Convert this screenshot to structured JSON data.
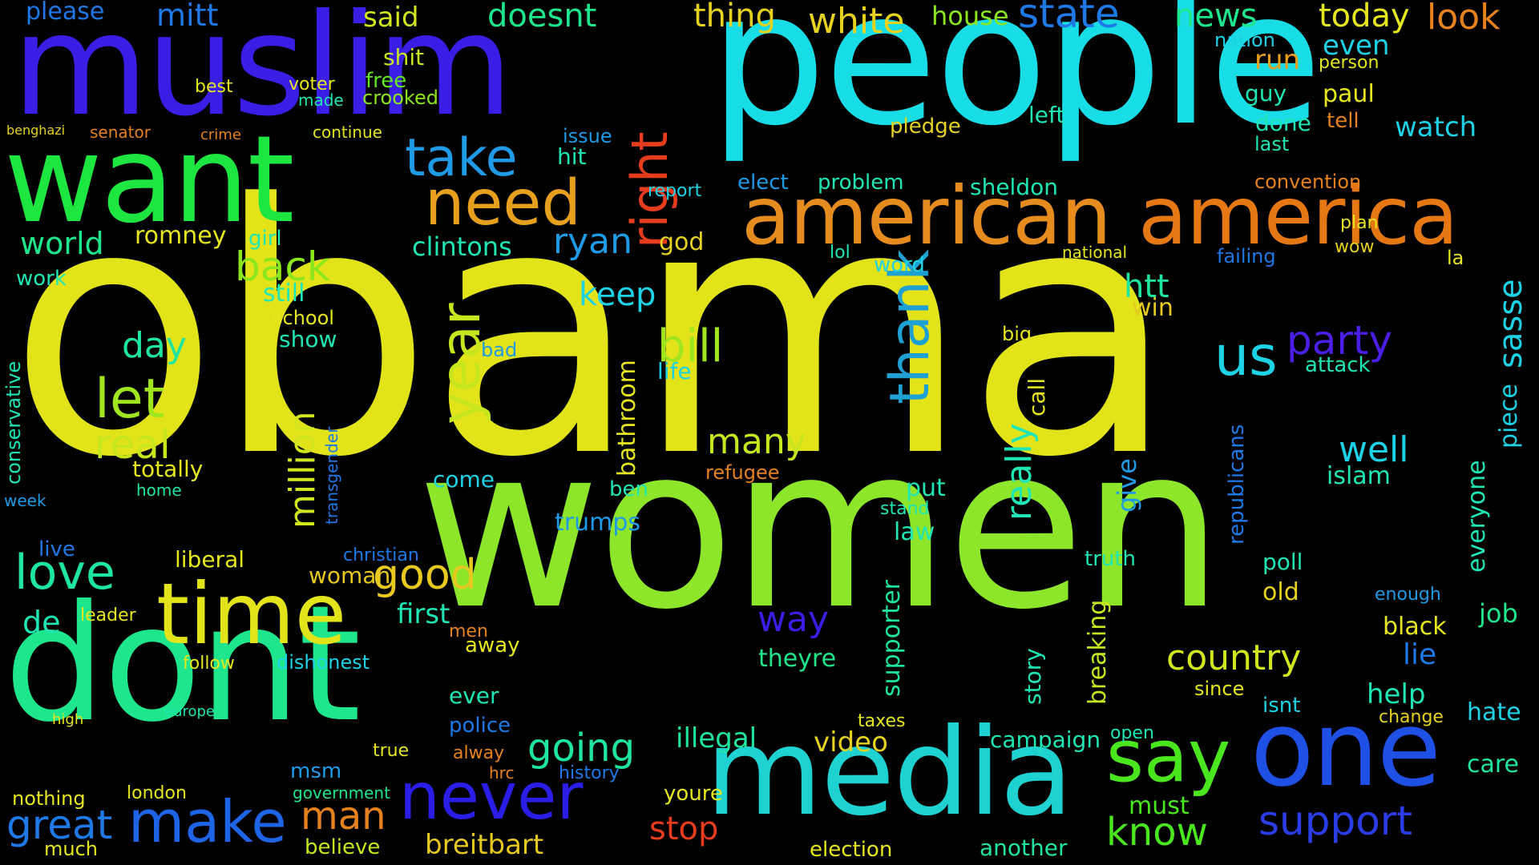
{
  "background": "#000000",
  "words": [
    {
      "text": "obama",
      "color": "#e3e31a"
    },
    {
      "text": "women",
      "color": "#8ee62a"
    },
    {
      "text": "people",
      "color": "#18dce6"
    },
    {
      "text": "muslim",
      "color": "#3a1ee6"
    },
    {
      "text": "want",
      "color": "#1ee640"
    },
    {
      "text": "dont",
      "color": "#1ee68c"
    },
    {
      "text": "media",
      "color": "#1ed2d2"
    },
    {
      "text": "one",
      "color": "#1e50e6"
    },
    {
      "text": "american",
      "color": "#e68c1e"
    },
    {
      "text": "america",
      "color": "#e67814"
    },
    {
      "text": "say",
      "color": "#4ae61e"
    },
    {
      "text": "time",
      "color": "#e3e31a"
    },
    {
      "text": "make",
      "color": "#1e64e6"
    },
    {
      "text": "never",
      "color": "#2a1ee6"
    },
    {
      "text": "need",
      "color": "#e6a01e"
    },
    {
      "text": "right",
      "color": "#e63c1e"
    },
    {
      "text": "take",
      "color": "#1e9ae6"
    },
    {
      "text": "thank",
      "color": "#1ea0d2"
    },
    {
      "text": "year",
      "color": "#c8e61e"
    },
    {
      "text": "let",
      "color": "#a0e61e"
    },
    {
      "text": "us",
      "color": "#1ed2e6"
    },
    {
      "text": "support",
      "color": "#2a3ce6"
    },
    {
      "text": "party",
      "color": "#4a1ee6"
    },
    {
      "text": "country",
      "color": "#d2e61e"
    },
    {
      "text": "know",
      "color": "#4ae61e"
    },
    {
      "text": "love",
      "color": "#1ee6a0"
    },
    {
      "text": "back",
      "color": "#8ce61e"
    },
    {
      "text": "state",
      "color": "#1e78e6"
    },
    {
      "text": "news",
      "color": "#1ee68c"
    },
    {
      "text": "today",
      "color": "#e6e61e"
    },
    {
      "text": "look",
      "color": "#e6821e"
    },
    {
      "text": "white",
      "color": "#e6d21e"
    },
    {
      "text": "thing",
      "color": "#e6d21e"
    },
    {
      "text": "said",
      "color": "#d2e61e"
    },
    {
      "text": "mitt",
      "color": "#1e78e6"
    },
    {
      "text": "doesnt",
      "color": "#1ee68c"
    },
    {
      "text": "house",
      "color": "#8ce61e"
    },
    {
      "text": "please",
      "color": "#1e78e6"
    },
    {
      "text": "shit",
      "color": "#c8e61e"
    },
    {
      "text": "free",
      "color": "#64e61e"
    },
    {
      "text": "crooked",
      "color": "#8ce61e"
    },
    {
      "text": "world",
      "color": "#1ee68c"
    },
    {
      "text": "romney",
      "color": "#e6e61e"
    },
    {
      "text": "day",
      "color": "#1ee6a0"
    },
    {
      "text": "real",
      "color": "#c8e61e"
    },
    {
      "text": "totally",
      "color": "#e6e61e"
    },
    {
      "text": "home",
      "color": "#1ee6a0"
    },
    {
      "text": "good",
      "color": "#e6c81e"
    },
    {
      "text": "first",
      "color": "#1ee6b4"
    },
    {
      "text": "woman",
      "color": "#e6c81e"
    },
    {
      "text": "great",
      "color": "#1e78e6"
    },
    {
      "text": "man",
      "color": "#e6821e"
    },
    {
      "text": "stop",
      "color": "#e63c1e"
    },
    {
      "text": "breitbart",
      "color": "#e6c81e"
    },
    {
      "text": "believe",
      "color": "#c8e61e"
    },
    {
      "text": "government",
      "color": "#1ee68c"
    },
    {
      "text": "going",
      "color": "#1ee6a0"
    },
    {
      "text": "video",
      "color": "#e6d21e"
    },
    {
      "text": "illegal",
      "color": "#1ee6a0"
    },
    {
      "text": "many",
      "color": "#c8e61e"
    },
    {
      "text": "bill",
      "color": "#a0e61e"
    },
    {
      "text": "keep",
      "color": "#1ed2e6"
    },
    {
      "text": "god",
      "color": "#e6d21e"
    },
    {
      "text": "ryan",
      "color": "#1e9ae6"
    },
    {
      "text": "clintons",
      "color": "#1ee6b4"
    },
    {
      "text": "million",
      "color": "#d2e61e"
    },
    {
      "text": "really",
      "color": "#1ee6b4"
    },
    {
      "text": "well",
      "color": "#1ed2e6"
    },
    {
      "text": "islam",
      "color": "#1ee6b4"
    },
    {
      "text": "way",
      "color": "#3a1ee6"
    },
    {
      "text": "theyre",
      "color": "#1ee68c"
    },
    {
      "text": "supporter",
      "color": "#1ee6a0"
    },
    {
      "text": "job",
      "color": "#1ee68c"
    },
    {
      "text": "lie",
      "color": "#1e78e6"
    },
    {
      "text": "help",
      "color": "#1ee6b4"
    },
    {
      "text": "old",
      "color": "#e6d21e"
    },
    {
      "text": "sasse",
      "color": "#1ed2e6"
    },
    {
      "text": "watch",
      "color": "#1ed2e6"
    },
    {
      "text": "piece",
      "color": "#1ed2e6"
    },
    {
      "text": "everyone",
      "color": "#1ee6b4"
    },
    {
      "text": "hate",
      "color": "#1ed2e6"
    },
    {
      "text": "care",
      "color": "#1ee6a0"
    },
    {
      "text": "campaign",
      "color": "#1ee6b4"
    },
    {
      "text": "election",
      "color": "#e6e61e"
    },
    {
      "text": "another",
      "color": "#1ee6a0"
    },
    {
      "text": "must",
      "color": "#4ae61e"
    },
    {
      "text": "taxes",
      "color": "#e6e61e"
    },
    {
      "text": "law",
      "color": "#1ee6b4"
    },
    {
      "text": "put",
      "color": "#1ee6b4"
    },
    {
      "text": "stand",
      "color": "#1ee6b4"
    },
    {
      "text": "pledge",
      "color": "#e6d21e"
    },
    {
      "text": "left",
      "color": "#1ee6b4"
    },
    {
      "text": "guy",
      "color": "#1ee6b4"
    },
    {
      "text": "done",
      "color": "#1ee6b4"
    },
    {
      "text": "paul",
      "color": "#e6e61e"
    },
    {
      "text": "run",
      "color": "#e6a01e"
    },
    {
      "text": "even",
      "color": "#1ed2e6"
    },
    {
      "text": "nation",
      "color": "#1ed2e6"
    },
    {
      "text": "person",
      "color": "#e6e61e"
    },
    {
      "text": "tell",
      "color": "#e6821e"
    },
    {
      "text": "last",
      "color": "#1ee6b4"
    },
    {
      "text": "convention",
      "color": "#e6821e"
    },
    {
      "text": "sheldon",
      "color": "#1ee6b4"
    },
    {
      "text": "problem",
      "color": "#1ee6b4"
    },
    {
      "text": "elect",
      "color": "#1e9ae6"
    },
    {
      "text": "report",
      "color": "#1ed2e6"
    },
    {
      "text": "hit",
      "color": "#1ee6b4"
    },
    {
      "text": "issue",
      "color": "#1e9ae6"
    },
    {
      "text": "word",
      "color": "#1ed2e6"
    },
    {
      "text": "lol",
      "color": "#1ee6b4"
    },
    {
      "text": "national",
      "color": "#e6e61e"
    },
    {
      "text": "plan",
      "color": "#e6e61e"
    },
    {
      "text": "wow",
      "color": "#e6d21e"
    },
    {
      "text": "la",
      "color": "#e6e61e"
    },
    {
      "text": "failing",
      "color": "#1e78e6"
    },
    {
      "text": "htt",
      "color": "#1ee6a0"
    },
    {
      "text": "win",
      "color": "#e6c81e"
    },
    {
      "text": "attack",
      "color": "#1ee6b4"
    },
    {
      "text": "call",
      "color": "#e6e61e"
    },
    {
      "text": "big",
      "color": "#e6e61e"
    },
    {
      "text": "story",
      "color": "#1ee6b4"
    },
    {
      "text": "breaking",
      "color": "#c8e61e"
    },
    {
      "text": "give",
      "color": "#1e9ae6"
    },
    {
      "text": "republicans",
      "color": "#1e78e6"
    },
    {
      "text": "truth",
      "color": "#1ee6b4"
    },
    {
      "text": "poll",
      "color": "#1ee6b4"
    },
    {
      "text": "black",
      "color": "#e6e61e"
    },
    {
      "text": "enough",
      "color": "#1e9ae6"
    },
    {
      "text": "since",
      "color": "#e6e61e"
    },
    {
      "text": "isnt",
      "color": "#1ed2e6"
    },
    {
      "text": "change",
      "color": "#e6d21e"
    },
    {
      "text": "open",
      "color": "#1ee6b4"
    },
    {
      "text": "history",
      "color": "#1e78e6"
    },
    {
      "text": "police",
      "color": "#1e78e6"
    },
    {
      "text": "ever",
      "color": "#1ee6b4"
    },
    {
      "text": "youre",
      "color": "#e6e61e"
    },
    {
      "text": "away",
      "color": "#e6e61e"
    },
    {
      "text": "trumps",
      "color": "#1e9ae6"
    },
    {
      "text": "ben",
      "color": "#1ee6b4"
    },
    {
      "text": "come",
      "color": "#1ed2e6"
    },
    {
      "text": "bad",
      "color": "#1e9ae6"
    },
    {
      "text": "life",
      "color": "#1ed2e6"
    },
    {
      "text": "bathroom",
      "color": "#e6e61e"
    },
    {
      "text": "refugee",
      "color": "#e6821e"
    },
    {
      "text": "liberal",
      "color": "#e6e61e"
    },
    {
      "text": "christian",
      "color": "#1e78e6"
    },
    {
      "text": "transgender",
      "color": "#1e78e6"
    },
    {
      "text": "show",
      "color": "#1ee6b4"
    },
    {
      "text": "school",
      "color": "#e6e61e"
    },
    {
      "text": "still",
      "color": "#1ee6b4"
    },
    {
      "text": "girl",
      "color": "#1ee6b4"
    },
    {
      "text": "work",
      "color": "#1ee6b4"
    },
    {
      "text": "conservative",
      "color": "#1ee6b4"
    },
    {
      "text": "week",
      "color": "#1e9ae6"
    },
    {
      "text": "live",
      "color": "#1e78e6"
    },
    {
      "text": "de",
      "color": "#1ee6b4"
    },
    {
      "text": "leader",
      "color": "#e6e61e"
    },
    {
      "text": "follow",
      "color": "#e6e61e"
    },
    {
      "text": "dishonest",
      "color": "#1ed2e6"
    },
    {
      "text": "msm",
      "color": "#1e9ae6"
    },
    {
      "text": "true",
      "color": "#e6e61e"
    },
    {
      "text": "much",
      "color": "#e6e61e"
    },
    {
      "text": "nothing",
      "color": "#e6e61e"
    },
    {
      "text": "london",
      "color": "#e6e61e"
    },
    {
      "text": "europe",
      "color": "#1ee6b4"
    },
    {
      "text": "high",
      "color": "#e6e61e"
    },
    {
      "text": "men",
      "color": "#e6821e"
    },
    {
      "text": "alway",
      "color": "#e6821e"
    },
    {
      "text": "hrc",
      "color": "#e6821e"
    },
    {
      "text": "voter",
      "color": "#e6e61e"
    },
    {
      "text": "made",
      "color": "#1ee6b4"
    },
    {
      "text": "best",
      "color": "#e6e61e"
    },
    {
      "text": "continue",
      "color": "#e6e61e"
    },
    {
      "text": "senator",
      "color": "#e6821e"
    },
    {
      "text": "crime",
      "color": "#e6821e"
    },
    {
      "text": "benghazi",
      "color": "#e6d21e"
    }
  ]
}
